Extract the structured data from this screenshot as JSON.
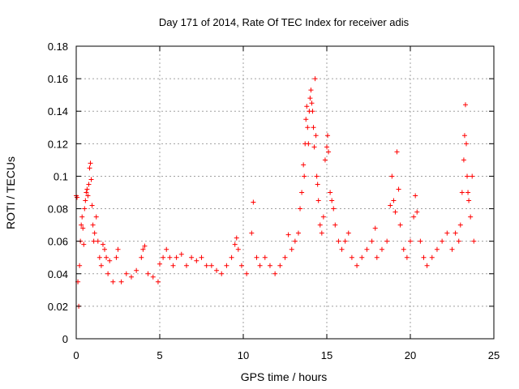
{
  "chart_data": {
    "type": "scatter",
    "title": "Day 171 of 2014, Rate Of TEC Index for receiver adis",
    "xlabel": "GPS time / hours",
    "ylabel": "ROTI / TECUs",
    "xlim": [
      0,
      25
    ],
    "ylim": [
      0,
      0.18
    ],
    "x_ticks": [
      0,
      5,
      10,
      15,
      20,
      25
    ],
    "x_tick_labels": [
      "0",
      "5",
      "10",
      "15",
      "20",
      "25"
    ],
    "y_ticks": [
      0,
      0.02,
      0.04,
      0.06,
      0.08,
      0.1,
      0.12,
      0.14,
      0.16,
      0.18
    ],
    "y_tick_labels": [
      "0",
      "0.02",
      "0.04",
      "0.06",
      "0.08",
      "0.1",
      "0.12",
      "0.14",
      "0.16",
      "0.18"
    ],
    "grid": true,
    "marker": "+",
    "marker_color": "#ff0000",
    "series": [
      {
        "name": "ROTI",
        "points": [
          [
            0.0,
            0.088
          ],
          [
            0.05,
            0.087
          ],
          [
            0.1,
            0.035
          ],
          [
            0.15,
            0.02
          ],
          [
            0.2,
            0.045
          ],
          [
            0.25,
            0.06
          ],
          [
            0.3,
            0.07
          ],
          [
            0.35,
            0.075
          ],
          [
            0.4,
            0.068
          ],
          [
            0.45,
            0.058
          ],
          [
            0.5,
            0.08
          ],
          [
            0.55,
            0.085
          ],
          [
            0.6,
            0.09
          ],
          [
            0.65,
            0.092
          ],
          [
            0.7,
            0.088
          ],
          [
            0.75,
            0.095
          ],
          [
            0.8,
            0.105
          ],
          [
            0.85,
            0.108
          ],
          [
            0.9,
            0.098
          ],
          [
            0.95,
            0.082
          ],
          [
            1.0,
            0.07
          ],
          [
            1.05,
            0.06
          ],
          [
            1.1,
            0.065
          ],
          [
            1.2,
            0.075
          ],
          [
            1.3,
            0.06
          ],
          [
            1.4,
            0.05
          ],
          [
            1.5,
            0.045
          ],
          [
            1.6,
            0.058
          ],
          [
            1.7,
            0.055
          ],
          [
            1.8,
            0.05
          ],
          [
            1.9,
            0.04
          ],
          [
            2.0,
            0.048
          ],
          [
            2.2,
            0.035
          ],
          [
            2.4,
            0.05
          ],
          [
            2.5,
            0.055
          ],
          [
            2.7,
            0.035
          ],
          [
            3.0,
            0.04
          ],
          [
            3.3,
            0.038
          ],
          [
            3.6,
            0.042
          ],
          [
            3.9,
            0.05
          ],
          [
            4.0,
            0.055
          ],
          [
            4.1,
            0.057
          ],
          [
            4.3,
            0.04
          ],
          [
            4.6,
            0.038
          ],
          [
            4.9,
            0.035
          ],
          [
            5.0,
            0.046
          ],
          [
            5.2,
            0.05
          ],
          [
            5.4,
            0.055
          ],
          [
            5.6,
            0.05
          ],
          [
            5.8,
            0.045
          ],
          [
            6.0,
            0.05
          ],
          [
            6.3,
            0.052
          ],
          [
            6.6,
            0.045
          ],
          [
            6.9,
            0.05
          ],
          [
            7.2,
            0.048
          ],
          [
            7.5,
            0.05
          ],
          [
            7.8,
            0.045
          ],
          [
            8.1,
            0.045
          ],
          [
            8.4,
            0.042
          ],
          [
            8.7,
            0.04
          ],
          [
            9.0,
            0.045
          ],
          [
            9.3,
            0.05
          ],
          [
            9.5,
            0.058
          ],
          [
            9.6,
            0.062
          ],
          [
            9.7,
            0.055
          ],
          [
            9.9,
            0.045
          ],
          [
            10.2,
            0.04
          ],
          [
            10.5,
            0.065
          ],
          [
            10.6,
            0.084
          ],
          [
            10.8,
            0.05
          ],
          [
            11.0,
            0.045
          ],
          [
            11.3,
            0.05
          ],
          [
            11.6,
            0.045
          ],
          [
            11.9,
            0.04
          ],
          [
            12.2,
            0.045
          ],
          [
            12.5,
            0.05
          ],
          [
            12.7,
            0.064
          ],
          [
            12.9,
            0.055
          ],
          [
            13.1,
            0.06
          ],
          [
            13.3,
            0.065
          ],
          [
            13.4,
            0.08
          ],
          [
            13.5,
            0.09
          ],
          [
            13.6,
            0.107
          ],
          [
            13.65,
            0.1
          ],
          [
            13.7,
            0.12
          ],
          [
            13.75,
            0.135
          ],
          [
            13.8,
            0.143
          ],
          [
            13.85,
            0.13
          ],
          [
            13.9,
            0.12
          ],
          [
            13.95,
            0.14
          ],
          [
            14.0,
            0.148
          ],
          [
            14.05,
            0.153
          ],
          [
            14.1,
            0.145
          ],
          [
            14.15,
            0.14
          ],
          [
            14.2,
            0.13
          ],
          [
            14.25,
            0.118
          ],
          [
            14.3,
            0.16
          ],
          [
            14.35,
            0.125
          ],
          [
            14.4,
            0.1
          ],
          [
            14.45,
            0.095
          ],
          [
            14.5,
            0.085
          ],
          [
            14.6,
            0.07
          ],
          [
            14.7,
            0.065
          ],
          [
            14.8,
            0.075
          ],
          [
            14.9,
            0.11
          ],
          [
            15.0,
            0.118
          ],
          [
            15.05,
            0.125
          ],
          [
            15.1,
            0.115
          ],
          [
            15.2,
            0.09
          ],
          [
            15.3,
            0.085
          ],
          [
            15.4,
            0.08
          ],
          [
            15.5,
            0.07
          ],
          [
            15.7,
            0.06
          ],
          [
            15.9,
            0.055
          ],
          [
            16.1,
            0.06
          ],
          [
            16.3,
            0.065
          ],
          [
            16.5,
            0.05
          ],
          [
            16.8,
            0.045
          ],
          [
            17.1,
            0.05
          ],
          [
            17.4,
            0.055
          ],
          [
            17.7,
            0.06
          ],
          [
            17.9,
            0.068
          ],
          [
            18.0,
            0.05
          ],
          [
            18.3,
            0.055
          ],
          [
            18.6,
            0.06
          ],
          [
            18.8,
            0.082
          ],
          [
            18.9,
            0.1
          ],
          [
            19.0,
            0.085
          ],
          [
            19.1,
            0.078
          ],
          [
            19.2,
            0.115
          ],
          [
            19.3,
            0.092
          ],
          [
            19.4,
            0.07
          ],
          [
            19.6,
            0.055
          ],
          [
            19.8,
            0.05
          ],
          [
            20.0,
            0.06
          ],
          [
            20.2,
            0.075
          ],
          [
            20.3,
            0.088
          ],
          [
            20.4,
            0.078
          ],
          [
            20.6,
            0.06
          ],
          [
            20.8,
            0.05
          ],
          [
            21.0,
            0.045
          ],
          [
            21.3,
            0.05
          ],
          [
            21.6,
            0.055
          ],
          [
            21.9,
            0.06
          ],
          [
            22.2,
            0.065
          ],
          [
            22.5,
            0.055
          ],
          [
            22.7,
            0.065
          ],
          [
            22.9,
            0.06
          ],
          [
            23.0,
            0.07
          ],
          [
            23.1,
            0.09
          ],
          [
            23.2,
            0.11
          ],
          [
            23.25,
            0.125
          ],
          [
            23.3,
            0.144
          ],
          [
            23.35,
            0.12
          ],
          [
            23.4,
            0.1
          ],
          [
            23.45,
            0.09
          ],
          [
            23.5,
            0.085
          ],
          [
            23.6,
            0.075
          ],
          [
            23.7,
            0.1
          ],
          [
            23.8,
            0.06
          ]
        ]
      }
    ]
  }
}
